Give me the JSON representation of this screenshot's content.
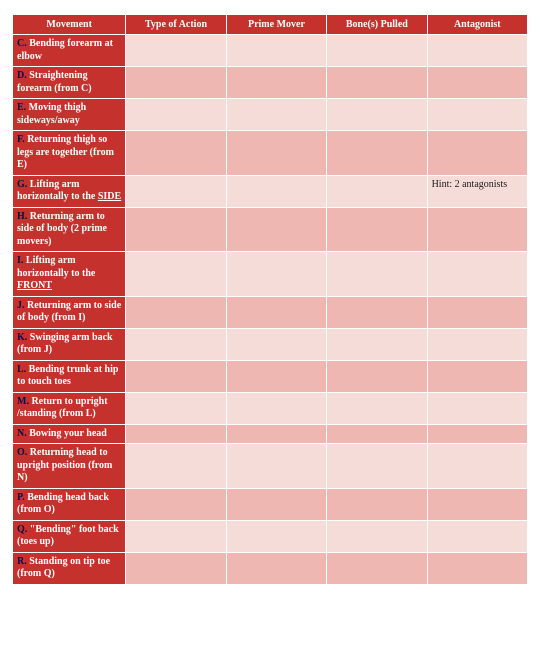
{
  "table": {
    "headers": [
      "Movement",
      "Type of Action",
      "Prime Mover",
      "Bone(s) Pulled",
      "Antagonist"
    ],
    "header_bg": "#c5322e",
    "header_color": "#ffffff",
    "light_bg": "#f6dcd9",
    "dark_bg": "#eeb7b2",
    "letter_color": "#0a0a4a",
    "font_family": "Georgia, serif",
    "header_fontsize": 10,
    "cell_fontsize": 10,
    "rows": [
      {
        "letter": "C.",
        "text": " Bending forearm at elbow",
        "shade": "light",
        "underline": false,
        "antag": ""
      },
      {
        "letter": "D.",
        "text": " Straightening forearm (from C)",
        "shade": "dark",
        "underline": false,
        "antag": ""
      },
      {
        "letter": "E.",
        "text": " Moving thigh sideways/away",
        "shade": "light",
        "underline": false,
        "antag": ""
      },
      {
        "letter": "F.",
        "text": " Returning thigh so legs are together (from E)",
        "shade": "dark",
        "underline": false,
        "antag": ""
      },
      {
        "letter": "G.",
        "text": " Lifting  arm horizontally to the ",
        "tail": "SIDE",
        "shade": "light",
        "underline": true,
        "antag": "Hint: 2 antagonists"
      },
      {
        "letter": "H.",
        "text": " Returning arm to side of body (2 prime movers)",
        "shade": "dark",
        "underline": false,
        "antag": ""
      },
      {
        "letter": "I.",
        "text": " Lifting arm horizontally to the ",
        "tail": "FRONT",
        "shade": "light",
        "underline": true,
        "antag": ""
      },
      {
        "letter": "J.",
        "text": " Returning arm to side of body (from I)",
        "shade": "dark",
        "underline": false,
        "antag": ""
      },
      {
        "letter": "K.",
        "text": " Swinging arm back (from J)",
        "shade": "light",
        "underline": false,
        "antag": ""
      },
      {
        "letter": "L.",
        "text": " Bending trunk at hip to touch toes",
        "shade": "dark",
        "underline": false,
        "antag": ""
      },
      {
        "letter": "M.",
        "text": " Return to upright /standing (from L)",
        "shade": "light",
        "underline": false,
        "antag": ""
      },
      {
        "letter": "N.",
        "text": " Bowing your head",
        "shade": "dark",
        "underline": false,
        "antag": ""
      },
      {
        "letter": "O.",
        "text": " Returning head to upright position (from N)",
        "shade": "light",
        "underline": false,
        "antag": ""
      },
      {
        "letter": "P.",
        "text": " Bending head back (from O)",
        "shade": "dark",
        "underline": false,
        "antag": ""
      },
      {
        "letter": "Q.",
        "text": " \"Bending\" foot back (toes up)",
        "shade": "light",
        "underline": false,
        "antag": ""
      },
      {
        "letter": "R.",
        "text": " Standing on tip toe (from Q)",
        "shade": "dark",
        "underline": false,
        "antag": ""
      }
    ]
  }
}
